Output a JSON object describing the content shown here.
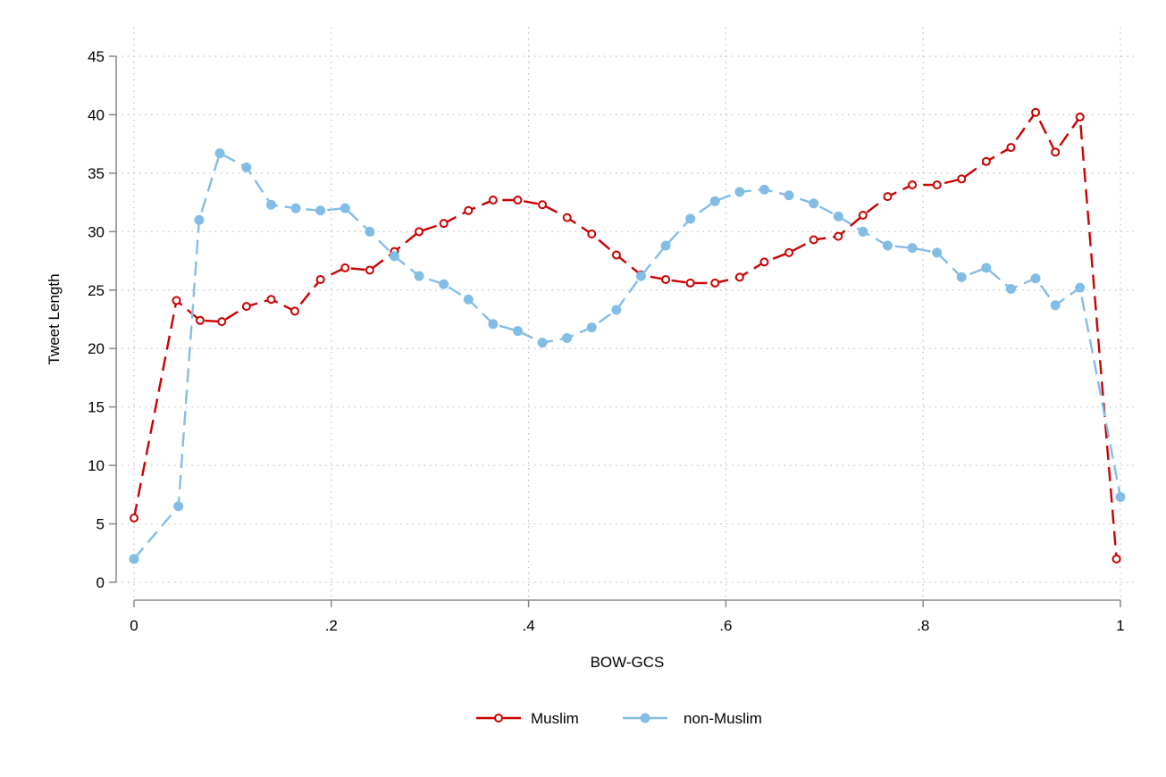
{
  "chart_data": {
    "type": "line",
    "xlabel": "BOW-GCS",
    "ylabel": "Tweet Length",
    "xlim": [
      0,
      1
    ],
    "ylim": [
      0,
      45
    ],
    "xticks": [
      {
        "value": 0,
        "label": "0"
      },
      {
        "value": 0.2,
        "label": ".2"
      },
      {
        "value": 0.4,
        "label": ".4"
      },
      {
        "value": 0.6,
        "label": ".6"
      },
      {
        "value": 0.8,
        "label": ".8"
      },
      {
        "value": 1,
        "label": "1"
      }
    ],
    "yticks": [
      {
        "value": 0,
        "label": "0"
      },
      {
        "value": 5,
        "label": "5"
      },
      {
        "value": 10,
        "label": "10"
      },
      {
        "value": 15,
        "label": "15"
      },
      {
        "value": 20,
        "label": "20"
      },
      {
        "value": 25,
        "label": "25"
      },
      {
        "value": 30,
        "label": "30"
      },
      {
        "value": 35,
        "label": "35"
      },
      {
        "value": 40,
        "label": "40"
      },
      {
        "value": 45,
        "label": "45"
      }
    ],
    "grid": true,
    "legend_position": "bottom",
    "series": [
      {
        "name": "Muslim",
        "color": "#cc0000",
        "marker": "hollow-circle",
        "line_style": "dashed",
        "x": [
          0,
          0.043,
          0.067,
          0.089,
          0.114,
          0.139,
          0.163,
          0.189,
          0.214,
          0.239,
          0.264,
          0.289,
          0.314,
          0.339,
          0.364,
          0.389,
          0.414,
          0.439,
          0.464,
          0.489,
          0.514,
          0.539,
          0.564,
          0.589,
          0.614,
          0.639,
          0.664,
          0.689,
          0.714,
          0.739,
          0.764,
          0.789,
          0.814,
          0.839,
          0.864,
          0.889,
          0.914,
          0.934,
          0.959,
          0.996
        ],
        "y": [
          5.5,
          24.1,
          22.4,
          22.3,
          23.6,
          24.2,
          23.2,
          25.9,
          26.9,
          26.7,
          28.3,
          30.0,
          30.7,
          31.8,
          32.7,
          32.7,
          32.3,
          31.2,
          29.8,
          28.0,
          26.3,
          25.9,
          25.6,
          25.6,
          26.1,
          27.4,
          28.2,
          29.3,
          29.6,
          31.4,
          33.0,
          34.0,
          34.0,
          34.5,
          36.0,
          37.2,
          40.2,
          36.8,
          39.8,
          2.0
        ]
      },
      {
        "name": "non-Muslim",
        "color": "#83bde5",
        "marker": "filled-circle",
        "line_style": "dashed",
        "x": [
          0,
          0.045,
          0.066,
          0.087,
          0.114,
          0.139,
          0.164,
          0.189,
          0.214,
          0.239,
          0.264,
          0.289,
          0.314,
          0.339,
          0.364,
          0.389,
          0.414,
          0.439,
          0.464,
          0.489,
          0.514,
          0.539,
          0.564,
          0.589,
          0.614,
          0.639,
          0.664,
          0.689,
          0.714,
          0.739,
          0.764,
          0.789,
          0.814,
          0.839,
          0.864,
          0.889,
          0.914,
          0.934,
          0.959,
          1.0
        ],
        "y": [
          2.0,
          6.5,
          31.0,
          36.7,
          35.5,
          32.3,
          32.0,
          31.8,
          32.0,
          30.0,
          27.9,
          26.2,
          25.5,
          24.2,
          22.1,
          21.5,
          20.5,
          20.9,
          21.8,
          23.3,
          26.2,
          28.8,
          31.1,
          32.6,
          33.4,
          33.6,
          33.1,
          32.4,
          31.3,
          30.0,
          28.8,
          28.6,
          28.2,
          26.1,
          26.9,
          25.1,
          26.0,
          23.7,
          25.2,
          7.3
        ]
      }
    ]
  }
}
